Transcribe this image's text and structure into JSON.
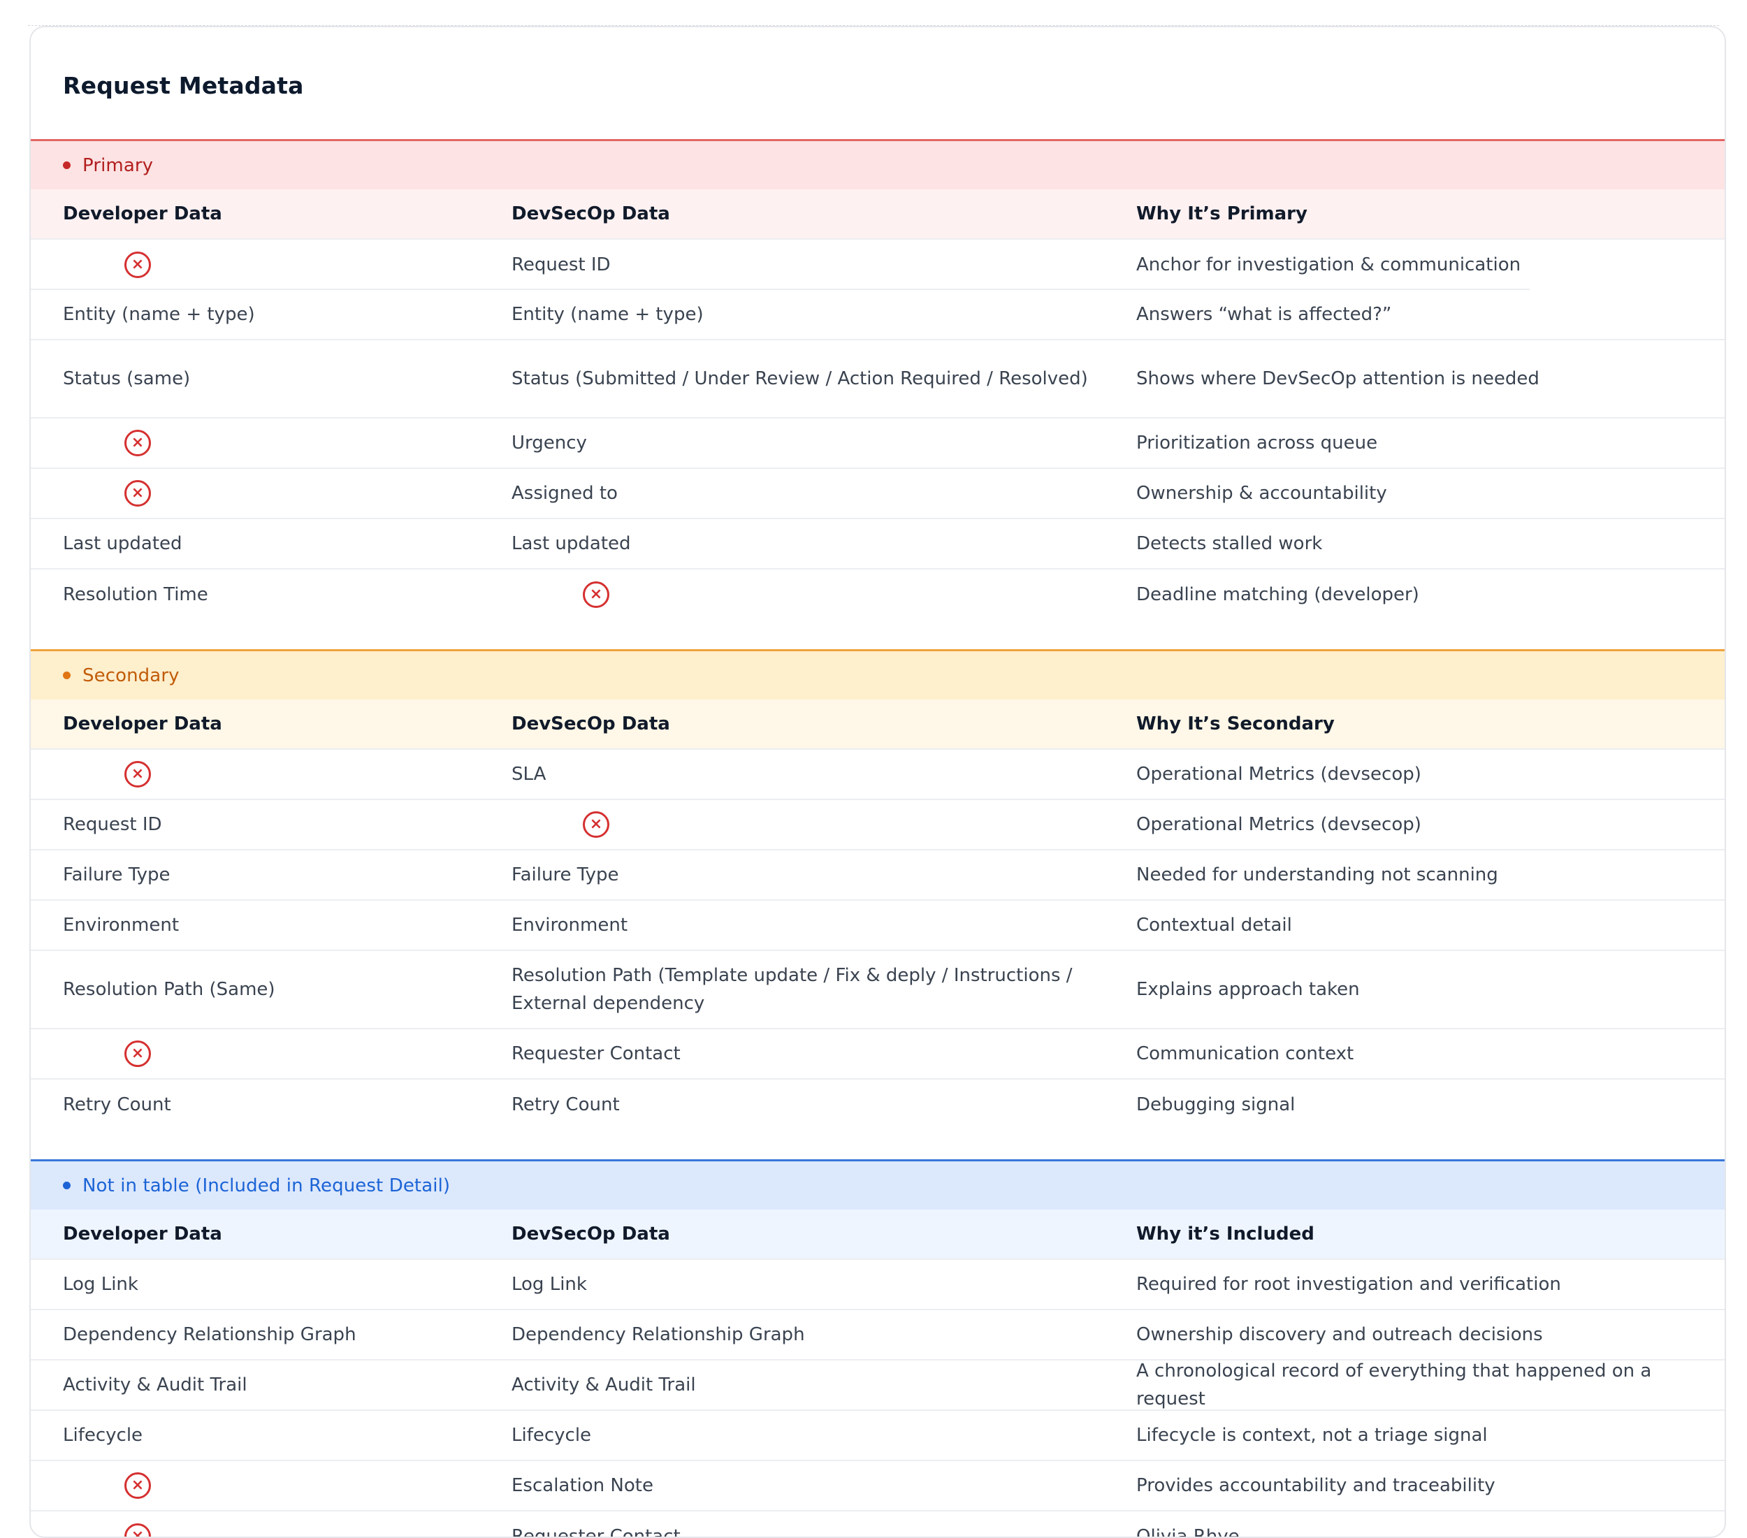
{
  "card": {
    "title": "Request Metadata"
  },
  "icons": {
    "missing": "×",
    "missing_name": "x-circle-icon",
    "missing_color": "#d53030"
  },
  "colors": {
    "primary": "#c62828",
    "secondary": "#e07512",
    "included": "#1c64d6"
  },
  "sections": {
    "primary": {
      "label": "Primary",
      "headers": [
        "Developer Data",
        "DevSecOp Data",
        "Why It’s Primary"
      ],
      "rows": [
        {
          "developer": null,
          "devsecop": "Request ID",
          "why": "Anchor for investigation & communication"
        },
        {
          "developer": "Entity (name + type)",
          "devsecop": "Entity (name + type)",
          "why": "Answers “what is affected?”"
        },
        {
          "developer": "Status (same)",
          "devsecop": "Status (Submitted / Under Review / Action Required / Resolved)",
          "why": "Shows where DevSecOp attention is needed"
        },
        {
          "developer": null,
          "devsecop": "Urgency",
          "why": "Prioritization across queue"
        },
        {
          "developer": null,
          "devsecop": "Assigned to",
          "why": "Ownership & accountability"
        },
        {
          "developer": "Last updated",
          "devsecop": "Last updated",
          "why": "Detects stalled work"
        },
        {
          "developer": "Resolution Time",
          "devsecop": null,
          "why": "Deadline matching (developer)"
        }
      ]
    },
    "secondary": {
      "label": "Secondary",
      "headers": [
        "Developer Data",
        "DevSecOp Data",
        "Why It’s Secondary"
      ],
      "rows": [
        {
          "developer": null,
          "devsecop": "SLA",
          "why": "Operational Metrics (devsecop)"
        },
        {
          "developer": "Request ID",
          "devsecop": null,
          "why": "Operational Metrics (devsecop)"
        },
        {
          "developer": "Failure Type",
          "devsecop": "Failure Type",
          "why": "Needed for understanding not scanning"
        },
        {
          "developer": "Environment",
          "devsecop": "Environment",
          "why": "Contextual detail"
        },
        {
          "developer": "Resolution Path (Same)",
          "devsecop": "Resolution Path (Template update / Fix & deply / Instructions / External dependency",
          "why": "Explains approach taken"
        },
        {
          "developer": null,
          "devsecop": "Requester Contact",
          "why": "Communication context"
        },
        {
          "developer": "Retry Count",
          "devsecop": "Retry Count",
          "why": "Debugging signal"
        }
      ]
    },
    "included": {
      "label": "Not in table (Included in Request Detail)",
      "headers": [
        "Developer Data",
        "DevSecOp Data",
        "Why it’s Included"
      ],
      "rows": [
        {
          "developer": "Log Link",
          "devsecop": "Log Link",
          "why": "Required for root investigation and verification"
        },
        {
          "developer": "Dependency Relationship Graph",
          "devsecop": "Dependency Relationship Graph",
          "why": "Ownership discovery and outreach decisions"
        },
        {
          "developer": "Activity & Audit Trail",
          "devsecop": "Activity & Audit Trail",
          "why": "A chronological record of everything that happened on a request"
        },
        {
          "developer": "Lifecycle",
          "devsecop": "Lifecycle",
          "why": "Lifecycle is context, not a triage signal"
        },
        {
          "developer": null,
          "devsecop": "Escalation Note",
          "why": "Provides accountability and traceability"
        },
        {
          "developer": null,
          "devsecop": "Requester Contact",
          "why": "Olivia Rhye"
        }
      ]
    }
  }
}
